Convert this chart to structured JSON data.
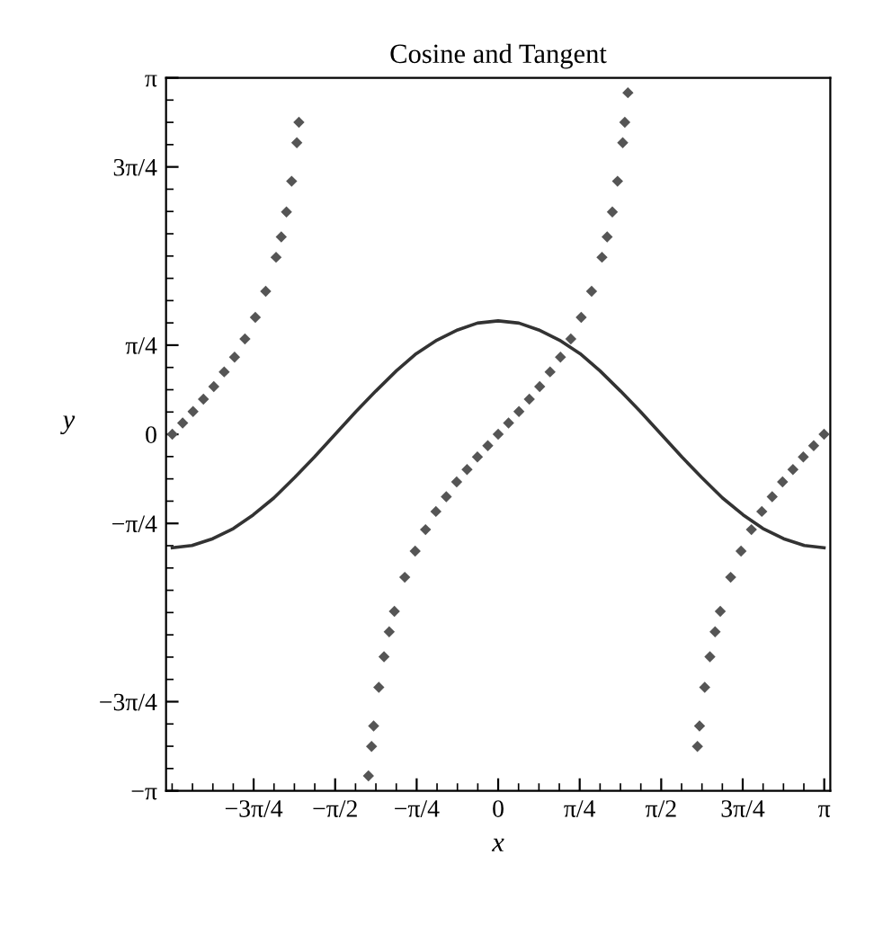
{
  "chart_data": {
    "type": "line",
    "title": "Cosine and Tangent",
    "xlabel": "x",
    "ylabel": "y",
    "xlim": [
      -3.2,
      3.2
    ],
    "ylim": [
      -3.1416,
      3.1416
    ],
    "xticks": [
      {
        "value": -2.3562,
        "label": "−3π/4"
      },
      {
        "value": -1.5708,
        "label": "−π/2"
      },
      {
        "value": -0.7854,
        "label": "−π/4"
      },
      0,
      {
        "value": 0.7854,
        "label": "π/4"
      },
      {
        "value": 1.5708,
        "label": "π/2"
      },
      {
        "value": 2.3562,
        "label": "3π/4"
      },
      {
        "value": 3.1416,
        "label": "π"
      }
    ],
    "yticks": [
      {
        "value": -3.1416,
        "label": "−π"
      },
      {
        "value": -2.3562,
        "label": "−3π/4"
      },
      {
        "value": -0.7854,
        "label": "−π/4"
      },
      0,
      {
        "value": 0.7854,
        "label": "π/4"
      },
      {
        "value": 2.3562,
        "label": "3π/4"
      },
      {
        "value": 3.1416,
        "label": "π"
      }
    ],
    "grid": false,
    "series": [
      {
        "color": "#333333",
        "line_style": "solid",
        "marker": "none",
        "x": [
          -3.14,
          -2.95,
          -2.75,
          -2.55,
          -2.36,
          -2.16,
          -1.96,
          -1.77,
          -1.57,
          -1.37,
          -1.18,
          -0.98,
          -0.79,
          -0.59,
          -0.39,
          -0.2,
          0,
          0.2,
          0.39,
          0.59,
          0.79,
          0.98,
          1.18,
          1.37,
          1.57,
          1.77,
          1.96,
          2.16,
          2.36,
          2.55,
          2.75,
          2.95,
          3.14
        ],
        "values": [
          -1,
          -0.98,
          -0.92,
          -0.83,
          -0.71,
          -0.56,
          -0.38,
          -0.2,
          0,
          0.2,
          0.38,
          0.56,
          0.71,
          0.83,
          0.92,
          0.98,
          1,
          0.98,
          0.92,
          0.83,
          0.71,
          0.56,
          0.38,
          0.2,
          0,
          -0.2,
          -0.38,
          -0.56,
          -0.71,
          -0.83,
          -0.92,
          -0.98,
          -1
        ]
      },
      {
        "type": "scatter",
        "color": "#555555",
        "marker": "diamond",
        "x": [
          -3.14,
          -3.04,
          -2.94,
          -2.84,
          -2.74,
          -2.64,
          -2.54,
          -2.44,
          -2.34,
          -2.24,
          -2.14,
          -2.09,
          -2.04,
          -1.99,
          -1.94,
          -1.92,
          -1.25,
          -1.22,
          -1.2,
          -1.15,
          -1.1,
          -1.05,
          -1.0,
          -0.9,
          -0.8,
          -0.7,
          -0.6,
          -0.5,
          -0.4,
          -0.3,
          -0.2,
          -0.1,
          0,
          0.1,
          0.2,
          0.3,
          0.4,
          0.5,
          0.6,
          0.7,
          0.8,
          0.9,
          1.0,
          1.05,
          1.1,
          1.15,
          1.2,
          1.22,
          1.25,
          1.92,
          1.94,
          1.99,
          2.04,
          2.09,
          2.14,
          2.24,
          2.34,
          2.44,
          2.54,
          2.64,
          2.74,
          2.84,
          2.94,
          3.04,
          3.14
        ],
        "values": [
          0,
          0.1,
          0.2,
          0.31,
          0.42,
          0.55,
          0.68,
          0.84,
          1.03,
          1.26,
          1.56,
          1.74,
          1.96,
          2.23,
          2.57,
          2.75,
          -3.01,
          -2.75,
          -2.57,
          -2.23,
          -1.96,
          -1.74,
          -1.56,
          -1.26,
          -1.03,
          -0.84,
          -0.68,
          -0.55,
          -0.42,
          -0.31,
          -0.2,
          -0.1,
          0,
          0.1,
          0.2,
          0.31,
          0.42,
          0.55,
          0.68,
          0.84,
          1.03,
          1.26,
          1.56,
          1.74,
          1.96,
          2.23,
          2.57,
          2.75,
          3.01,
          -2.75,
          -2.57,
          -2.23,
          -1.96,
          -1.74,
          -1.56,
          -1.26,
          -1.03,
          -0.84,
          -0.68,
          -0.55,
          -0.42,
          -0.31,
          -0.2,
          -0.1,
          0
        ]
      }
    ]
  }
}
